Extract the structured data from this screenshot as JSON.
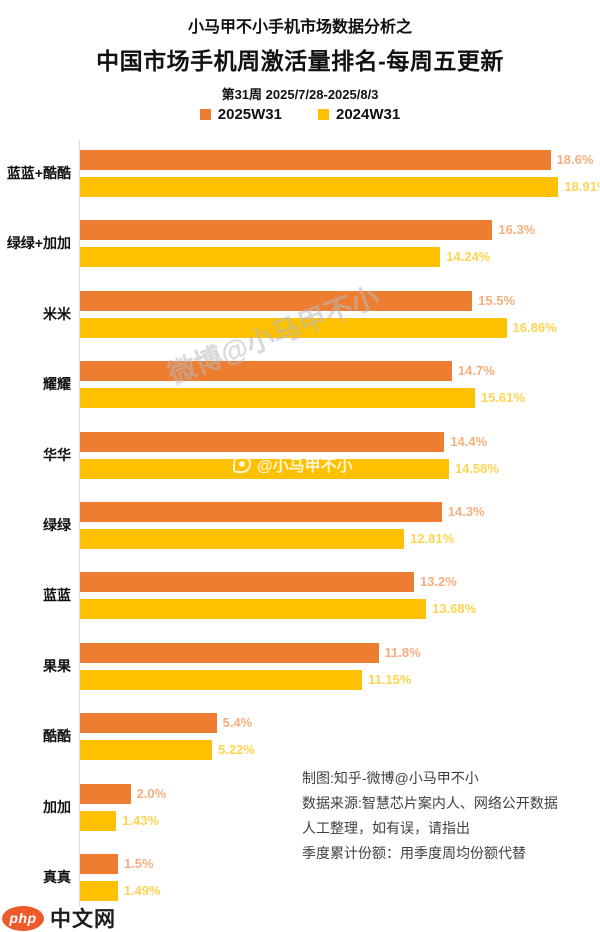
{
  "header": {
    "kicker": "小马甲不小手机市场数据分析之",
    "title": "中国市场手机周激活量排名-每周五更新",
    "subtitle": "第31周 2025/7/28-2025/8/3"
  },
  "legend": [
    {
      "label": "2025W31",
      "color": "#ED7D31"
    },
    {
      "label": "2024W31",
      "color": "#FFC000"
    }
  ],
  "chart_data": {
    "type": "bar",
    "orientation": "horizontal",
    "title": "中国市场手机周激活量排名-每周五更新",
    "categories": [
      "蓝蓝+酷酷",
      "绿绿+加加",
      "米米",
      "耀耀",
      "华华",
      "绿绿",
      "蓝蓝",
      "果果",
      "酷酷",
      "加加",
      "真真"
    ],
    "series": [
      {
        "name": "2025W31",
        "color": "#ED7D31",
        "label_color": "rgba(237,125,49,0.62)",
        "values": [
          18.6,
          16.3,
          15.5,
          14.7,
          14.4,
          14.3,
          13.2,
          11.8,
          5.4,
          2.0,
          1.5
        ],
        "labels": [
          "18.6%",
          "16.3%",
          "15.5%",
          "14.7%",
          "14.4%",
          "14.3%",
          "13.2%",
          "11.8%",
          "5.4%",
          "2.0%",
          "1.5%"
        ]
      },
      {
        "name": "2024W31",
        "color": "#FFC000",
        "label_color": "rgba(255,192,0,0.68)",
        "values": [
          18.91,
          14.24,
          16.86,
          15.61,
          14.58,
          12.81,
          13.68,
          11.15,
          5.22,
          1.43,
          1.49
        ],
        "labels": [
          "18.91%",
          "14.24%",
          "16.86%",
          "15.61%",
          "14.58%",
          "12.81%",
          "13.68%",
          "11.15%",
          "5.22%",
          "1.43%",
          "1.49%"
        ]
      }
    ],
    "xlim": [
      0,
      19.3
    ],
    "value_suffix": "%",
    "grid": false,
    "legend_position": "top"
  },
  "watermarks": {
    "diagonal": "微博@小马甲不小",
    "inline": "@小马甲不小"
  },
  "notes": [
    "制图:知乎-微博@小马甲不小",
    "数据来源:智慧芯片案内人、网络公开数据",
    "人工整理，如有误，请指出",
    "季度累计份额：用季度周均份额代替"
  ],
  "footer_logo": {
    "badge": "php",
    "site": "中文网"
  },
  "colors": {
    "axis_line": "#DCDCDC",
    "watermark_gray": "#BABABA",
    "title_text": "#111111",
    "notes_text": "#404040",
    "logo_badge": "#ED5A2B"
  }
}
